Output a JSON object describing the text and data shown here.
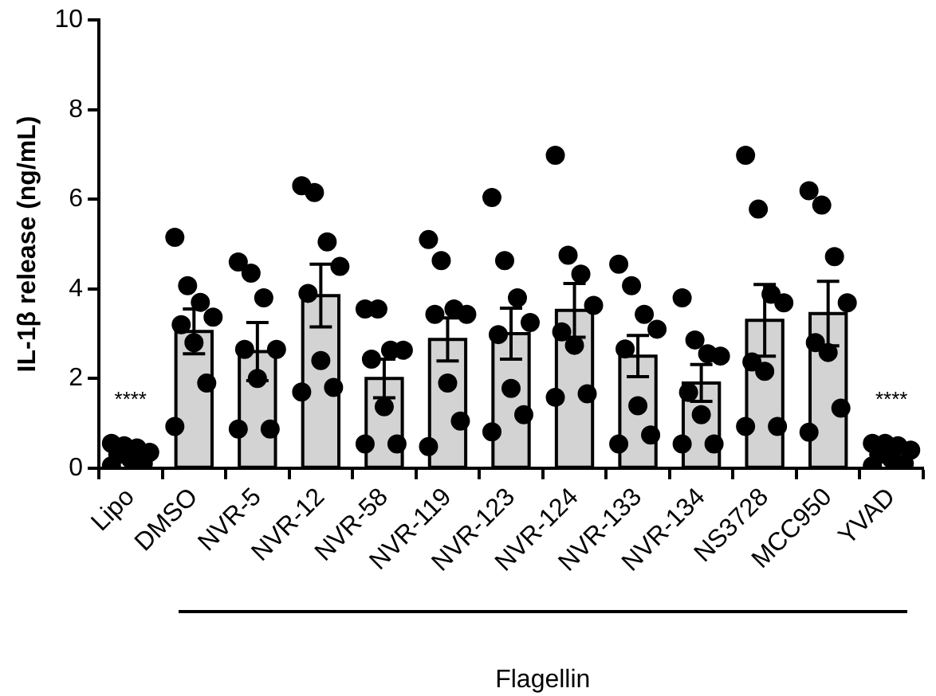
{
  "chart_data": {
    "type": "bar",
    "ylabel": "IL-1β release (ng/mL)",
    "categories": [
      "Lipo",
      "DMSO",
      "NVR-5",
      "NVR-12",
      "NVR-58",
      "NVR-119",
      "NVR-123",
      "NVR-124",
      "NVR-133",
      "NVR-134",
      "NS3728",
      "MCC950",
      "YVAD"
    ],
    "ylim": [
      0,
      10
    ],
    "yticks": [
      0,
      2,
      4,
      6,
      8,
      10
    ],
    "grid": false,
    "legend": false,
    "marker": "circle",
    "annotations": [
      "****",
      "****",
      "Flagellin"
    ],
    "series": [
      {
        "color": "#d3d3d3",
        "values": [
          null,
          3.05,
          2.6,
          3.85,
          2.0,
          2.87,
          3.0,
          3.52,
          2.5,
          1.9,
          3.3,
          3.45,
          null
        ],
        "errors": [
          null,
          0.5,
          0.65,
          0.7,
          0.43,
          0.48,
          0.57,
          0.6,
          0.46,
          0.41,
          0.8,
          0.72,
          null
        ]
      },
      {
        "type": "scatter",
        "color": "#000000",
        "x": [
          "Lipo",
          "Lipo",
          "Lipo",
          "Lipo",
          "Lipo",
          "Lipo",
          "Lipo",
          "Lipo",
          "DMSO",
          "DMSO",
          "DMSO",
          "DMSO",
          "DMSO",
          "DMSO",
          "DMSO",
          "DMSO",
          "NVR-5",
          "NVR-5",
          "NVR-5",
          "NVR-5",
          "NVR-5",
          "NVR-5",
          "NVR-5",
          "NVR-5",
          "NVR-12",
          "NVR-12",
          "NVR-12",
          "NVR-12",
          "NVR-12",
          "NVR-12",
          "NVR-12",
          "NVR-12",
          "NVR-58",
          "NVR-58",
          "NVR-58",
          "NVR-58",
          "NVR-58",
          "NVR-58",
          "NVR-58",
          "NVR-58",
          "NVR-119",
          "NVR-119",
          "NVR-119",
          "NVR-119",
          "NVR-119",
          "NVR-119",
          "NVR-119",
          "NVR-119",
          "NVR-123",
          "NVR-123",
          "NVR-123",
          "NVR-123",
          "NVR-123",
          "NVR-123",
          "NVR-123",
          "NVR-123",
          "NVR-124",
          "NVR-124",
          "NVR-124",
          "NVR-124",
          "NVR-124",
          "NVR-124",
          "NVR-124",
          "NVR-124",
          "NVR-133",
          "NVR-133",
          "NVR-133",
          "NVR-133",
          "NVR-133",
          "NVR-133",
          "NVR-133",
          "NVR-133",
          "NVR-134",
          "NVR-134",
          "NVR-134",
          "NVR-134",
          "NVR-134",
          "NVR-134",
          "NVR-134",
          "NVR-134",
          "NS3728",
          "NS3728",
          "NS3728",
          "NS3728",
          "NS3728",
          "NS3728",
          "NS3728",
          "NS3728",
          "MCC950",
          "MCC950",
          "MCC950",
          "MCC950",
          "MCC950",
          "MCC950",
          "MCC950",
          "MCC950",
          "YVAD",
          "YVAD",
          "YVAD",
          "YVAD",
          "YVAD",
          "YVAD",
          "YVAD",
          "YVAD"
        ],
        "values": [
          0.55,
          0.5,
          0.45,
          0.35,
          0.3,
          0.2,
          0.1,
          0.05,
          5.15,
          4.07,
          3.7,
          3.37,
          3.2,
          2.8,
          1.9,
          0.93,
          4.6,
          4.35,
          3.8,
          2.65,
          2.65,
          2.0,
          0.87,
          0.87,
          6.3,
          6.15,
          5.05,
          4.5,
          3.9,
          2.4,
          1.8,
          1.7,
          3.55,
          3.55,
          2.63,
          2.63,
          2.43,
          1.37,
          0.54,
          0.54,
          5.1,
          4.63,
          3.55,
          3.43,
          3.43,
          1.9,
          1.05,
          0.48,
          6.04,
          4.63,
          3.8,
          3.25,
          2.98,
          1.78,
          1.19,
          0.81,
          6.98,
          4.75,
          4.33,
          3.63,
          3.04,
          2.74,
          1.66,
          1.58,
          4.55,
          4.07,
          3.43,
          3.1,
          2.66,
          1.39,
          0.74,
          0.54,
          3.8,
          2.86,
          2.55,
          2.5,
          1.69,
          1.19,
          0.54,
          0.54,
          6.98,
          5.78,
          3.88,
          3.69,
          2.37,
          2.16,
          0.93,
          0.93,
          6.19,
          5.87,
          4.72,
          3.69,
          2.8,
          2.58,
          1.34,
          0.8,
          0.55,
          0.55,
          0.5,
          0.4,
          0.3,
          0.2,
          0.1,
          0.05
        ]
      }
    ]
  }
}
